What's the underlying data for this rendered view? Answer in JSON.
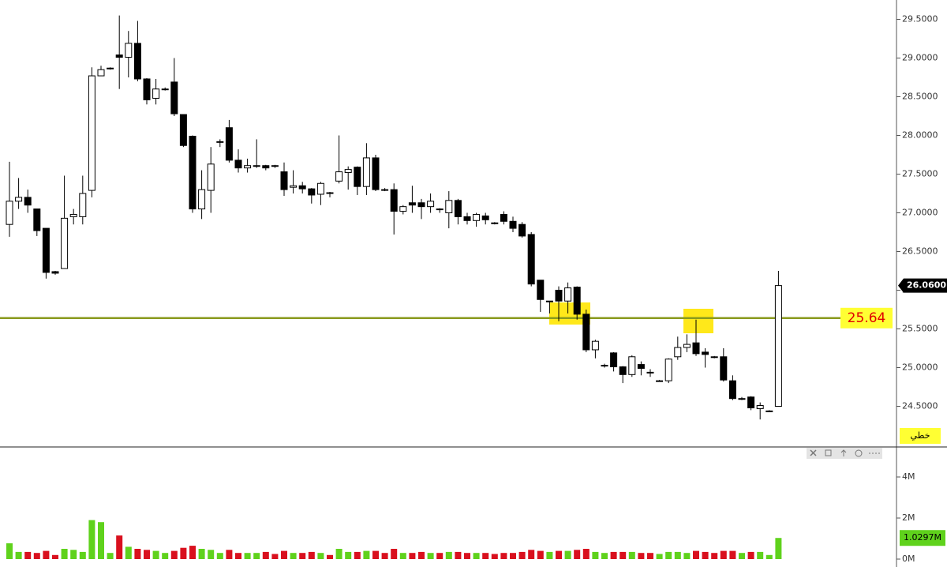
{
  "chart_data": [
    {
      "type": "candlestick",
      "open": [
        26.85,
        27.15,
        27.2,
        27.05,
        26.8,
        26.24,
        26.28,
        26.95,
        26.95,
        27.29,
        28.77,
        28.86,
        29.04,
        29.01,
        29.19,
        28.73,
        28.48,
        28.6,
        28.69,
        28.27,
        27.99,
        27.05,
        27.29,
        27.91,
        28.1,
        27.68,
        27.58,
        27.61,
        27.61,
        27.61,
        27.53,
        27.33,
        27.35,
        27.31,
        27.24,
        27.26,
        27.41,
        27.52,
        27.59,
        27.34,
        27.71,
        27.3,
        27.3,
        27.02,
        27.13,
        27.13,
        27.08,
        27.05,
        27.0,
        27.16,
        26.95,
        26.9,
        26.96,
        26.87,
        26.98,
        26.89,
        26.85,
        26.72,
        26.13,
        25.86,
        26.0,
        25.86,
        26.04,
        25.69,
        25.23,
        25.02,
        25.19,
        25.01,
        24.91,
        25.04,
        24.94,
        24.83,
        24.83,
        25.14,
        25.26,
        25.32,
        25.2,
        25.14,
        25.14,
        24.83,
        24.6,
        24.62,
        24.47,
        24.44,
        24.5
      ],
      "high": [
        27.66,
        27.45,
        27.3,
        27.05,
        26.8,
        26.25,
        27.48,
        27.05,
        27.48,
        28.88,
        28.9,
        28.88,
        29.55,
        29.35,
        29.48,
        28.74,
        28.73,
        28.62,
        29.0,
        28.27,
        28.0,
        27.55,
        27.85,
        27.95,
        28.2,
        27.82,
        27.7,
        27.95,
        27.62,
        27.62,
        27.65,
        27.55,
        27.4,
        27.32,
        27.4,
        27.27,
        28.0,
        27.6,
        27.6,
        27.9,
        27.75,
        27.32,
        27.38,
        27.1,
        27.35,
        27.18,
        27.25,
        27.06,
        27.28,
        27.18,
        27.0,
        27.0,
        27.0,
        26.88,
        27.02,
        26.95,
        26.88,
        26.75,
        26.13,
        25.86,
        26.05,
        26.1,
        26.05,
        25.75,
        25.36,
        25.05,
        25.2,
        25.02,
        25.16,
        25.08,
        24.98,
        24.84,
        25.12,
        25.4,
        25.43,
        25.62,
        25.25,
        25.15,
        25.25,
        24.9,
        24.62,
        24.63,
        24.55,
        24.45,
        26.25
      ],
      "low": [
        26.69,
        27.05,
        27.0,
        26.7,
        26.15,
        26.2,
        26.28,
        26.85,
        26.85,
        27.2,
        28.77,
        28.85,
        28.6,
        28.75,
        28.7,
        28.4,
        28.4,
        28.58,
        28.25,
        27.85,
        27.0,
        26.92,
        27.0,
        27.85,
        27.65,
        27.52,
        27.52,
        27.58,
        27.55,
        27.58,
        27.22,
        27.25,
        27.25,
        27.12,
        27.1,
        27.2,
        27.38,
        27.3,
        27.23,
        27.23,
        27.28,
        27.28,
        26.72,
        26.98,
        27.0,
        26.92,
        27.0,
        27.0,
        26.8,
        26.85,
        26.85,
        26.82,
        26.85,
        26.85,
        26.85,
        26.75,
        26.68,
        26.05,
        25.72,
        25.7,
        25.6,
        25.7,
        25.62,
        25.2,
        25.12,
        25.0,
        24.95,
        24.8,
        24.88,
        24.9,
        24.88,
        24.82,
        24.8,
        25.1,
        25.2,
        25.15,
        25.0,
        25.12,
        24.82,
        24.58,
        24.58,
        24.45,
        24.33,
        24.43,
        24.5
      ],
      "close": [
        27.15,
        27.2,
        27.1,
        26.77,
        26.23,
        26.22,
        26.93,
        26.98,
        27.25,
        28.77,
        28.85,
        28.87,
        29.01,
        29.19,
        28.73,
        28.46,
        28.6,
        28.6,
        28.28,
        27.87,
        27.05,
        27.3,
        27.63,
        27.92,
        27.68,
        27.58,
        27.61,
        27.61,
        27.58,
        27.6,
        27.3,
        27.35,
        27.31,
        27.23,
        27.38,
        27.25,
        27.53,
        27.56,
        27.34,
        27.71,
        27.3,
        27.29,
        27.02,
        27.08,
        27.1,
        27.08,
        27.15,
        27.04,
        27.16,
        26.95,
        26.9,
        26.98,
        26.91,
        26.86,
        26.89,
        26.8,
        26.7,
        26.08,
        25.88,
        25.86,
        25.86,
        26.03,
        25.69,
        25.23,
        25.34,
        25.03,
        25.01,
        24.91,
        25.14,
        24.99,
        24.93,
        24.83,
        25.11,
        25.26,
        25.3,
        25.18,
        25.17,
        25.13,
        24.84,
        24.6,
        24.6,
        24.48,
        24.51,
        24.44,
        26.06
      ],
      "up_color": "#ffffff",
      "down_color": "#000000",
      "ylim": [
        24,
        29.75
      ],
      "yticks": [
        {
          "value": 24.5,
          "label": "24.5000"
        },
        {
          "value": 25,
          "label": "25.0000"
        },
        {
          "value": 25.5,
          "label": "25.5000"
        },
        {
          "value": 26,
          "label": "26.0000"
        },
        {
          "value": 26.5,
          "label": "26.5000"
        },
        {
          "value": 27,
          "label": "27.0000"
        },
        {
          "value": 27.5,
          "label": "27.5000"
        },
        {
          "value": 28,
          "label": "28.0000"
        },
        {
          "value": 28.5,
          "label": "28.5000"
        },
        {
          "value": 29,
          "label": "29.0000"
        },
        {
          "value": 29.5,
          "label": "29.5000"
        }
      ],
      "close_label": "26.0600",
      "hline": 25.64,
      "hline_color": "#8a9a1e",
      "style_label": "خطي"
    },
    {
      "type": "bar",
      "values": [
        0.77,
        0.35,
        0.35,
        0.3,
        0.4,
        0.2,
        0.5,
        0.45,
        0.35,
        1.9,
        1.8,
        0.3,
        1.15,
        0.6,
        0.5,
        0.45,
        0.4,
        0.3,
        0.4,
        0.55,
        0.65,
        0.5,
        0.45,
        0.3,
        0.45,
        0.3,
        0.3,
        0.3,
        0.35,
        0.25,
        0.4,
        0.3,
        0.3,
        0.35,
        0.3,
        0.2,
        0.5,
        0.35,
        0.35,
        0.4,
        0.4,
        0.3,
        0.5,
        0.3,
        0.3,
        0.35,
        0.3,
        0.3,
        0.35,
        0.35,
        0.3,
        0.3,
        0.3,
        0.25,
        0.3,
        0.3,
        0.35,
        0.45,
        0.4,
        0.35,
        0.4,
        0.4,
        0.45,
        0.5,
        0.35,
        0.3,
        0.35,
        0.35,
        0.35,
        0.3,
        0.3,
        0.25,
        0.35,
        0.35,
        0.3,
        0.4,
        0.35,
        0.3,
        0.4,
        0.4,
        0.3,
        0.35,
        0.35,
        0.2,
        1.0297
      ],
      "up_color": "#5fd21c",
      "down_color": "#d9101e",
      "ylim": [
        0,
        5.4
      ],
      "yticks": [
        {
          "value": 0,
          "label": "0M"
        },
        {
          "value": 2,
          "label": "2M"
        },
        {
          "value": 4,
          "label": "4M"
        }
      ],
      "last_value_label": "1.0297M"
    }
  ]
}
